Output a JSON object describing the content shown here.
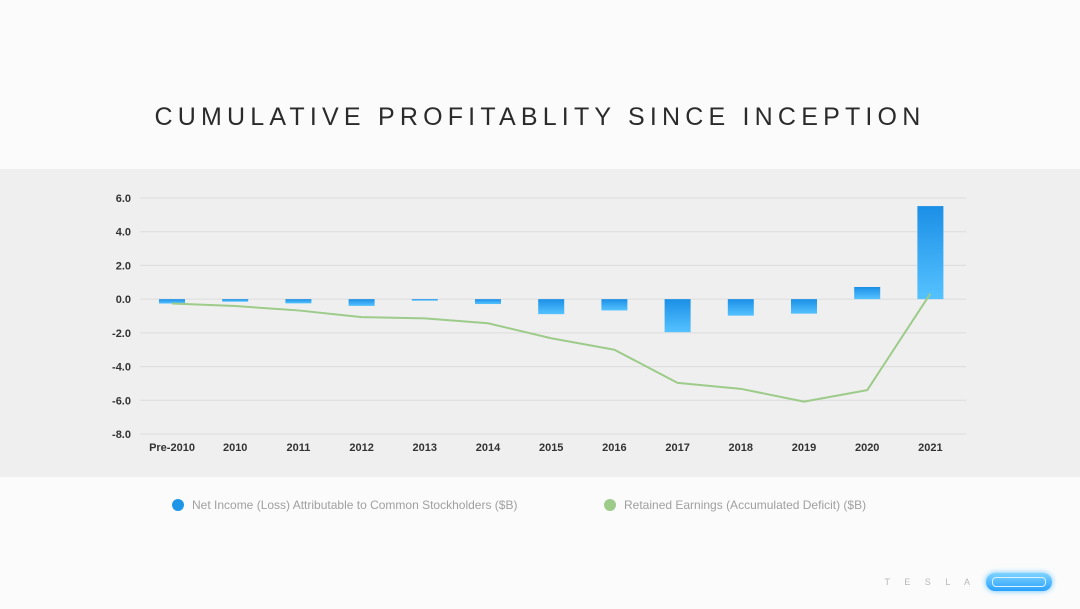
{
  "title": "CUMULATIVE PROFITABLITY SINCE INCEPTION",
  "legend": [
    {
      "label": "Net Income (Loss) Attributable to Common Stockholders ($B)",
      "color": "#1e96e8"
    },
    {
      "label": "Retained Earnings (Accumulated Deficit) ($B)",
      "color": "#9dcb8a"
    }
  ],
  "branding": {
    "wordmark": "T E S L A"
  },
  "chart_data": {
    "type": "bar",
    "categories": [
      "Pre-2010",
      "2010",
      "2011",
      "2012",
      "2013",
      "2014",
      "2015",
      "2016",
      "2017",
      "2018",
      "2019",
      "2020",
      "2021"
    ],
    "series": [
      {
        "name": "Net Income (Loss) Attributable to Common Stockholders ($B)",
        "type": "bar",
        "values": [
          -0.26,
          -0.15,
          -0.25,
          -0.4,
          -0.07,
          -0.29,
          -0.89,
          -0.67,
          -1.96,
          -0.98,
          -0.86,
          0.72,
          5.52
        ]
      },
      {
        "name": "Retained Earnings (Accumulated Deficit) ($B)",
        "type": "line",
        "values": [
          -0.26,
          -0.41,
          -0.67,
          -1.07,
          -1.14,
          -1.43,
          -2.32,
          -3.0,
          -4.97,
          -5.32,
          -6.08,
          -5.4,
          0.33
        ]
      }
    ],
    "yticks": [
      "6.0",
      "4.0",
      "2.0",
      "0.0",
      "-2.0",
      "-4.0",
      "-6.0",
      "-8.0"
    ],
    "ylim": [
      -8,
      6
    ],
    "grid": true,
    "legend_position": "bottom"
  }
}
